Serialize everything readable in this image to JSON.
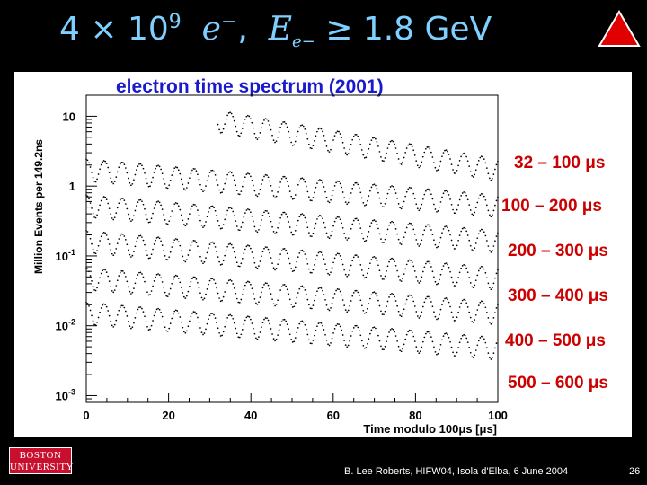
{
  "slide": {
    "title_count": "4 × 10",
    "title_exp": "9",
    "title_particle": "e",
    "title_particle_sup": "−",
    "title_energy_sym": "E",
    "title_energy_sub": "e−",
    "title_relation": "≥ 1.8 GeV",
    "footer": "B. Lee Roberts, HIFW04,  Isola d'Elba, 6 June 2004",
    "page_number": "26",
    "logo_line1": "BOSTON",
    "logo_line2": "UNIVERSITY"
  },
  "colors": {
    "title": "#7fd0ff",
    "accent_red": "#cc0000",
    "triangle": "#e00000"
  },
  "chart_data": {
    "type": "scatter",
    "title": "electron time spectrum (2001)",
    "xlabel": "Time modulo 100μs [μs]",
    "ylabel": "Million Events per 149.2ns",
    "xlim": [
      0,
      100
    ],
    "ylim_log": [
      0.0008,
      20
    ],
    "x_ticks": [
      "0",
      "20",
      "40",
      "60",
      "80",
      "100"
    ],
    "y_ticks": [
      {
        "base": "10",
        "exp": "",
        "value": 10
      },
      {
        "base": "1",
        "exp": "",
        "value": 1
      },
      {
        "base": "10",
        "exp": "-1",
        "value": 0.1
      },
      {
        "base": "10",
        "exp": "-2",
        "value": 0.01
      },
      {
        "base": "10",
        "exp": "-3",
        "value": 0.001
      }
    ],
    "grid": false,
    "oscillation_period_us": 4.37,
    "series": [
      {
        "name": "32 – 100  μs",
        "x_start": 32,
        "x_end": 100,
        "y_start": 9,
        "y_end": 1.8,
        "mod_amp": 0.35
      },
      {
        "name": "100 – 200  μs",
        "x_start": 0,
        "x_end": 100,
        "y_start": 1.8,
        "y_end": 0.55,
        "mod_amp": 0.35
      },
      {
        "name": "200 – 300  μs",
        "x_start": 0,
        "x_end": 100,
        "y_start": 0.55,
        "y_end": 0.17,
        "mod_amp": 0.35
      },
      {
        "name": "300 – 400  μs",
        "x_start": 0,
        "x_end": 100,
        "y_start": 0.17,
        "y_end": 0.05,
        "mod_amp": 0.35
      },
      {
        "name": "400 – 500  μs",
        "x_start": 0,
        "x_end": 100,
        "y_start": 0.05,
        "y_end": 0.016,
        "mod_amp": 0.35
      },
      {
        "name": "500 – 600  μs",
        "x_start": 0,
        "x_end": 100,
        "y_start": 0.016,
        "y_end": 0.005,
        "mod_amp": 0.35
      }
    ]
  }
}
